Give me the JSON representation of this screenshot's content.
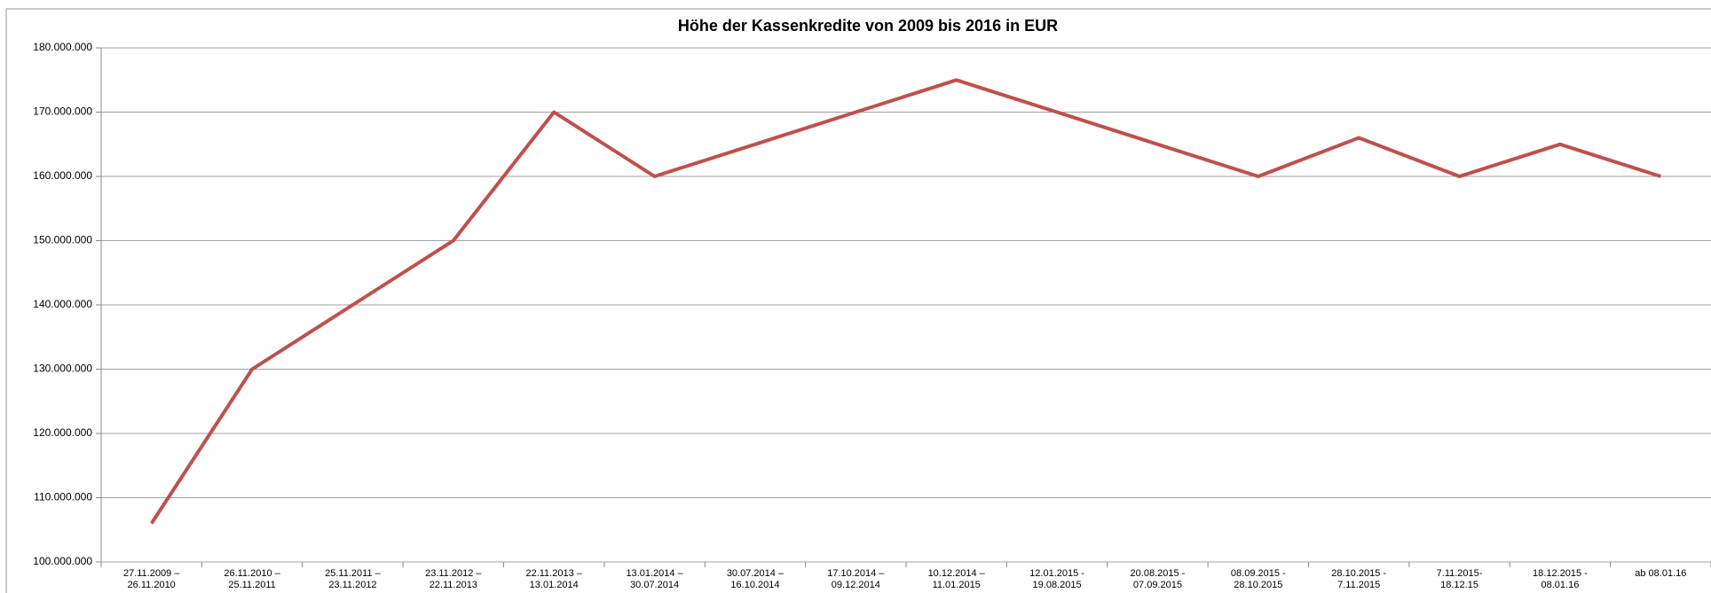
{
  "chart_data": {
    "type": "line",
    "title": "Höhe der Kassenkredite von 2009 bis 2016 in EUR",
    "categories": [
      "27.11.2009 –\n26.11.2010",
      "26.11.2010 –\n25.11.2011",
      "25.11.2011 –\n23.11.2012",
      "23.11.2012 –\n22.11.2013",
      "22.11.2013 –\n13.01.2014",
      "13.01.2014 –\n30.07.2014",
      "30.07.2014 –\n16.10.2014",
      "17.10.2014 –\n09.12.2014",
      "10.12.2014 –\n11.01.2015",
      "12.01.2015 -\n19.08.2015",
      "20.08.2015 -\n07.09.2015",
      "08.09.2015 -\n28.10.2015",
      "28.10.2015 -\n7.11.2015",
      "7.11.2015-\n18.12.15",
      "18.12.2015 -\n08.01.16",
      "ab 08.01.16"
    ],
    "series": [
      {
        "name": null,
        "color": "#c0504d",
        "values": [
          106000000,
          130000000,
          140000000,
          150000000,
          170000000,
          160000000,
          165000000,
          170000000,
          175000000,
          170000000,
          165000000,
          160000000,
          166000000,
          160000000,
          165000000,
          160000000
        ]
      }
    ],
    "ylim": [
      100000000,
      180000000
    ],
    "yticks": [
      {
        "value": 100000000,
        "label": "100.000.000"
      },
      {
        "value": 110000000,
        "label": "110.000.000"
      },
      {
        "value": 120000000,
        "label": "120.000.000"
      },
      {
        "value": 130000000,
        "label": "130.000.000"
      },
      {
        "value": 140000000,
        "label": "140.000.000"
      },
      {
        "value": 150000000,
        "label": "150.000.000"
      },
      {
        "value": 160000000,
        "label": "160.000.000"
      },
      {
        "value": 170000000,
        "label": "170.000.000"
      },
      {
        "value": 180000000,
        "label": "180.000.000"
      }
    ],
    "grid": true
  }
}
